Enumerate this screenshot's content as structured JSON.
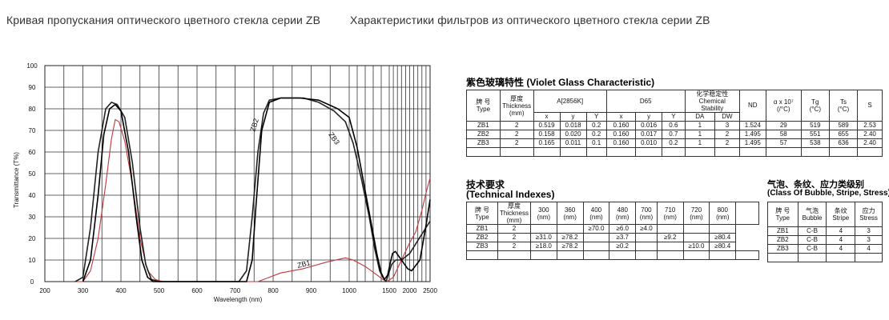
{
  "headings": {
    "left": "Кривая пропускания оптического цветного стекла серии ZB",
    "right": "Характеристики фильтров из оптического цветного стекла серии ZB"
  },
  "chart_data": {
    "type": "line",
    "xlabel": "Wavelength (nm)",
    "ylabel": "Transmittance (T%)",
    "xlim": [
      200,
      2500
    ],
    "ylim": [
      0,
      100
    ],
    "x_ticks": [
      "200",
      "300",
      "400",
      "500",
      "600",
      "700",
      "800",
      "900",
      "1000",
      "1500",
      "2000",
      "2500"
    ],
    "y_ticks": [
      "0",
      "10",
      "20",
      "30",
      "40",
      "50",
      "60",
      "70",
      "80",
      "90",
      "100"
    ],
    "grid": true,
    "annotations": [
      "ZB2",
      "ZB3",
      "ZB1"
    ],
    "series": [
      {
        "name": "ZB1",
        "color": "#c0393b",
        "points": [
          [
            280,
            0
          ],
          [
            300,
            0
          ],
          [
            320,
            5
          ],
          [
            340,
            20
          ],
          [
            360,
            45
          ],
          [
            375,
            66
          ],
          [
            385,
            75
          ],
          [
            395,
            74
          ],
          [
            410,
            65
          ],
          [
            430,
            45
          ],
          [
            450,
            20
          ],
          [
            470,
            5
          ],
          [
            490,
            1
          ],
          [
            510,
            0
          ],
          [
            700,
            0
          ],
          [
            760,
            0
          ],
          [
            790,
            2
          ],
          [
            820,
            4
          ],
          [
            880,
            6
          ],
          [
            940,
            9
          ],
          [
            990,
            11
          ],
          [
            1050,
            10
          ],
          [
            1200,
            7
          ],
          [
            1350,
            3
          ],
          [
            1420,
            1
          ],
          [
            1470,
            0
          ],
          [
            1600,
            2
          ],
          [
            1800,
            10
          ],
          [
            2000,
            18
          ],
          [
            2150,
            23
          ],
          [
            2300,
            33
          ],
          [
            2400,
            41
          ],
          [
            2500,
            48
          ]
        ]
      },
      {
        "name": "ZB2",
        "color": "#222222",
        "points": [
          [
            280,
            0
          ],
          [
            300,
            2
          ],
          [
            320,
            25
          ],
          [
            340,
            60
          ],
          [
            360,
            80
          ],
          [
            375,
            83
          ],
          [
            390,
            82
          ],
          [
            410,
            76
          ],
          [
            430,
            55
          ],
          [
            450,
            25
          ],
          [
            465,
            8
          ],
          [
            480,
            1
          ],
          [
            500,
            0
          ],
          [
            710,
            0
          ],
          [
            730,
            5
          ],
          [
            745,
            30
          ],
          [
            760,
            60
          ],
          [
            775,
            78
          ],
          [
            790,
            84
          ],
          [
            820,
            85
          ],
          [
            880,
            85
          ],
          [
            920,
            83
          ],
          [
            960,
            79
          ],
          [
            990,
            74
          ],
          [
            1050,
            64
          ],
          [
            1150,
            48
          ],
          [
            1250,
            30
          ],
          [
            1320,
            15
          ],
          [
            1380,
            5
          ],
          [
            1420,
            2
          ],
          [
            1460,
            0
          ],
          [
            1560,
            8
          ],
          [
            1660,
            10
          ],
          [
            1800,
            10
          ],
          [
            2000,
            13
          ],
          [
            2200,
            19
          ],
          [
            2400,
            25
          ],
          [
            2500,
            28
          ]
        ]
      },
      {
        "name": "ZB3",
        "color": "#000000",
        "points": [
          [
            300,
            0
          ],
          [
            320,
            10
          ],
          [
            340,
            40
          ],
          [
            355,
            68
          ],
          [
            370,
            80
          ],
          [
            385,
            82
          ],
          [
            400,
            79
          ],
          [
            420,
            60
          ],
          [
            440,
            30
          ],
          [
            455,
            10
          ],
          [
            470,
            2
          ],
          [
            485,
            0
          ],
          [
            730,
            0
          ],
          [
            745,
            10
          ],
          [
            755,
            35
          ],
          [
            770,
            70
          ],
          [
            790,
            83
          ],
          [
            820,
            85
          ],
          [
            870,
            85
          ],
          [
            920,
            84
          ],
          [
            970,
            80
          ],
          [
            1000,
            76
          ],
          [
            1100,
            62
          ],
          [
            1200,
            42
          ],
          [
            1300,
            22
          ],
          [
            1350,
            12
          ],
          [
            1400,
            4
          ],
          [
            1440,
            1
          ],
          [
            1480,
            3
          ],
          [
            1530,
            9
          ],
          [
            1580,
            13
          ],
          [
            1650,
            14
          ],
          [
            1800,
            10
          ],
          [
            1950,
            6
          ],
          [
            2050,
            5
          ],
          [
            2250,
            10
          ],
          [
            2400,
            26
          ],
          [
            2500,
            38
          ]
        ]
      }
    ]
  },
  "violet": {
    "title": "紫色玻璃特性 (Violet Glass Characteristic)",
    "h_type": [
      "牌  号",
      "Type"
    ],
    "h_thick": [
      "厚度",
      "Thickness",
      "(mm)"
    ],
    "h_a": "A[2856K]",
    "h_d65": "D65",
    "h_chem": [
      "化学稳定性",
      "Chemical",
      "Stability"
    ],
    "h_nd": "ND",
    "h_alpha": [
      "α x 10⁷",
      "(/°C)"
    ],
    "h_tg": [
      "Tg",
      "(°C)"
    ],
    "h_ts": [
      "Ts",
      "(°C)"
    ],
    "h_s": "S",
    "sub_x": "x",
    "sub_y": "y",
    "sub_Y": "Y",
    "sub_da": "DA",
    "sub_dw": "DW",
    "rows": [
      [
        "ZB1",
        "2",
        "0.519",
        "0.018",
        "0.2",
        "0.160",
        "0.016",
        "0.6",
        "1",
        "3",
        "1.524",
        "29",
        "519",
        "589",
        "2.53"
      ],
      [
        "ZB2",
        "2",
        "0.158",
        "0.020",
        "0.2",
        "0.160",
        "0.017",
        "0.7",
        "1",
        "2",
        "1.495",
        "58",
        "551",
        "655",
        "2.40"
      ],
      [
        "ZB3",
        "2",
        "0.165",
        "0.011",
        "0.1",
        "0.160",
        "0.010",
        "0.2",
        "1",
        "2",
        "1.495",
        "57",
        "538",
        "636",
        "2.40"
      ]
    ]
  },
  "technical": {
    "title_cn": "技术要求",
    "title_en": "(Technical Indexes)",
    "h_type": [
      "牌  号",
      "Type"
    ],
    "h_thick": [
      "厚度",
      "Thickness",
      "(mm)"
    ],
    "wavelengths": [
      [
        "300",
        "(nm)"
      ],
      [
        "360",
        "(nm)"
      ],
      [
        "400",
        "(nm)"
      ],
      [
        "480",
        "(nm)"
      ],
      [
        "700",
        "(nm)"
      ],
      [
        "710",
        "(nm)"
      ],
      [
        "720",
        "(nm)"
      ],
      [
        "800",
        "(nm)"
      ]
    ],
    "rows": [
      [
        "ZB1",
        "2",
        "",
        "",
        "≥70.0",
        "≥6.0",
        "≥4.0",
        "",
        "",
        ""
      ],
      [
        "ZB2",
        "2",
        "≥31.0",
        "≥78.2",
        "",
        "≥3.7",
        "",
        "≥9.2",
        "",
        "≥80.4"
      ],
      [
        "ZB3",
        "2",
        "≥18.0",
        "≥78.2",
        "",
        "≥0.2",
        "",
        "",
        "≥10.0",
        "≥80.4"
      ]
    ]
  },
  "bubble": {
    "title_cn": "气泡、条纹、应力类级别",
    "title_en": "(Class Of Bubble, Stripe, Stress)",
    "h_type": [
      "牌  号",
      "Type"
    ],
    "h_bubble": [
      "气泡",
      "Bubble"
    ],
    "h_stripe": [
      "条纹",
      "Stripe"
    ],
    "h_stress": [
      "应力",
      "Stress"
    ],
    "rows": [
      [
        "ZB1",
        "C-B",
        "4",
        "3"
      ],
      [
        "ZB2",
        "C-B",
        "4",
        "3"
      ],
      [
        "ZB3",
        "C-B",
        "4",
        "4"
      ]
    ]
  }
}
